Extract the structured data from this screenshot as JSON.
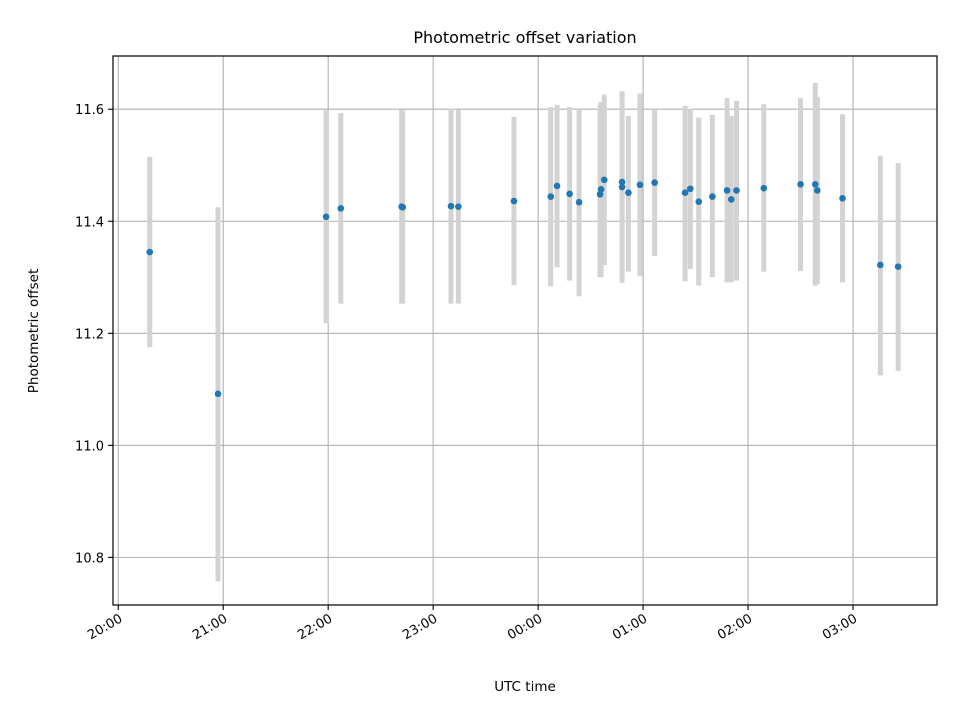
{
  "chart_data": {
    "type": "scatter",
    "title": "Photometric offset variation",
    "xlabel": "UTC time",
    "ylabel": "Photometric offset",
    "x_unit": "UTC time of day (hours, continuing past midnight)",
    "xlim": [
      19.95,
      27.8
    ],
    "ylim": [
      10.715,
      11.695
    ],
    "grid": true,
    "x_ticks": [
      20,
      21,
      22,
      23,
      24,
      25,
      26,
      27
    ],
    "x_tick_labels": [
      "20:00",
      "21:00",
      "22:00",
      "23:00",
      "00:00",
      "01:00",
      "02:00",
      "03:00"
    ],
    "y_ticks": [
      10.8,
      11.0,
      11.2,
      11.4,
      11.6
    ],
    "y_tick_labels": [
      "10.8",
      "11.0",
      "11.2",
      "11.4",
      "11.6"
    ],
    "colors": {
      "points": "#1f77b4",
      "error_bars": "#d3d3d3",
      "grid": "#b0b0b0"
    },
    "points": [
      {
        "x": 20.3,
        "y": 11.345,
        "lo": 11.175,
        "hi": 11.515
      },
      {
        "x": 20.95,
        "y": 11.092,
        "lo": 10.757,
        "hi": 11.425
      },
      {
        "x": 21.98,
        "y": 11.408,
        "lo": 11.218,
        "hi": 11.598
      },
      {
        "x": 22.12,
        "y": 11.423,
        "lo": 11.253,
        "hi": 11.593
      },
      {
        "x": 22.7,
        "y": 11.426,
        "lo": 11.253,
        "hi": 11.599
      },
      {
        "x": 22.71,
        "y": 11.425,
        "lo": 11.253,
        "hi": 11.598
      },
      {
        "x": 23.17,
        "y": 11.427,
        "lo": 11.253,
        "hi": 11.601
      },
      {
        "x": 23.24,
        "y": 11.426,
        "lo": 11.253,
        "hi": 11.599
      },
      {
        "x": 23.77,
        "y": 11.436,
        "lo": 11.286,
        "hi": 11.586
      },
      {
        "x": 24.12,
        "y": 11.444,
        "lo": 11.284,
        "hi": 11.604
      },
      {
        "x": 24.18,
        "y": 11.463,
        "lo": 11.318,
        "hi": 11.608
      },
      {
        "x": 24.3,
        "y": 11.449,
        "lo": 11.294,
        "hi": 11.604
      },
      {
        "x": 24.39,
        "y": 11.434,
        "lo": 11.266,
        "hi": 11.602
      },
      {
        "x": 24.59,
        "y": 11.448,
        "lo": 11.3,
        "hi": 11.607
      },
      {
        "x": 24.6,
        "y": 11.457,
        "lo": 11.3,
        "hi": 11.613
      },
      {
        "x": 24.63,
        "y": 11.474,
        "lo": 11.322,
        "hi": 11.626
      },
      {
        "x": 24.8,
        "y": 11.47,
        "lo": 11.31,
        "hi": 11.63
      },
      {
        "x": 24.8,
        "y": 11.461,
        "lo": 11.29,
        "hi": 11.632
      },
      {
        "x": 24.86,
        "y": 11.451,
        "lo": 11.31,
        "hi": 11.588
      },
      {
        "x": 24.97,
        "y": 11.465,
        "lo": 11.302,
        "hi": 11.628
      },
      {
        "x": 25.11,
        "y": 11.469,
        "lo": 11.338,
        "hi": 11.6
      },
      {
        "x": 25.4,
        "y": 11.451,
        "lo": 11.293,
        "hi": 11.606
      },
      {
        "x": 25.45,
        "y": 11.458,
        "lo": 11.315,
        "hi": 11.601
      },
      {
        "x": 25.53,
        "y": 11.435,
        "lo": 11.285,
        "hi": 11.585
      },
      {
        "x": 25.66,
        "y": 11.444,
        "lo": 11.3,
        "hi": 11.59
      },
      {
        "x": 25.8,
        "y": 11.455,
        "lo": 11.291,
        "hi": 11.62
      },
      {
        "x": 25.84,
        "y": 11.439,
        "lo": 11.291,
        "hi": 11.588
      },
      {
        "x": 25.89,
        "y": 11.455,
        "lo": 11.294,
        "hi": 11.615
      },
      {
        "x": 26.15,
        "y": 11.459,
        "lo": 11.31,
        "hi": 11.609
      },
      {
        "x": 26.5,
        "y": 11.466,
        "lo": 11.311,
        "hi": 11.62
      },
      {
        "x": 26.64,
        "y": 11.466,
        "lo": 11.285,
        "hi": 11.647
      },
      {
        "x": 26.66,
        "y": 11.455,
        "lo": 11.288,
        "hi": 11.622
      },
      {
        "x": 26.9,
        "y": 11.441,
        "lo": 11.291,
        "hi": 11.591
      },
      {
        "x": 27.26,
        "y": 11.322,
        "lo": 11.125,
        "hi": 11.517
      },
      {
        "x": 27.43,
        "y": 11.319,
        "lo": 11.133,
        "hi": 11.504
      }
    ]
  }
}
